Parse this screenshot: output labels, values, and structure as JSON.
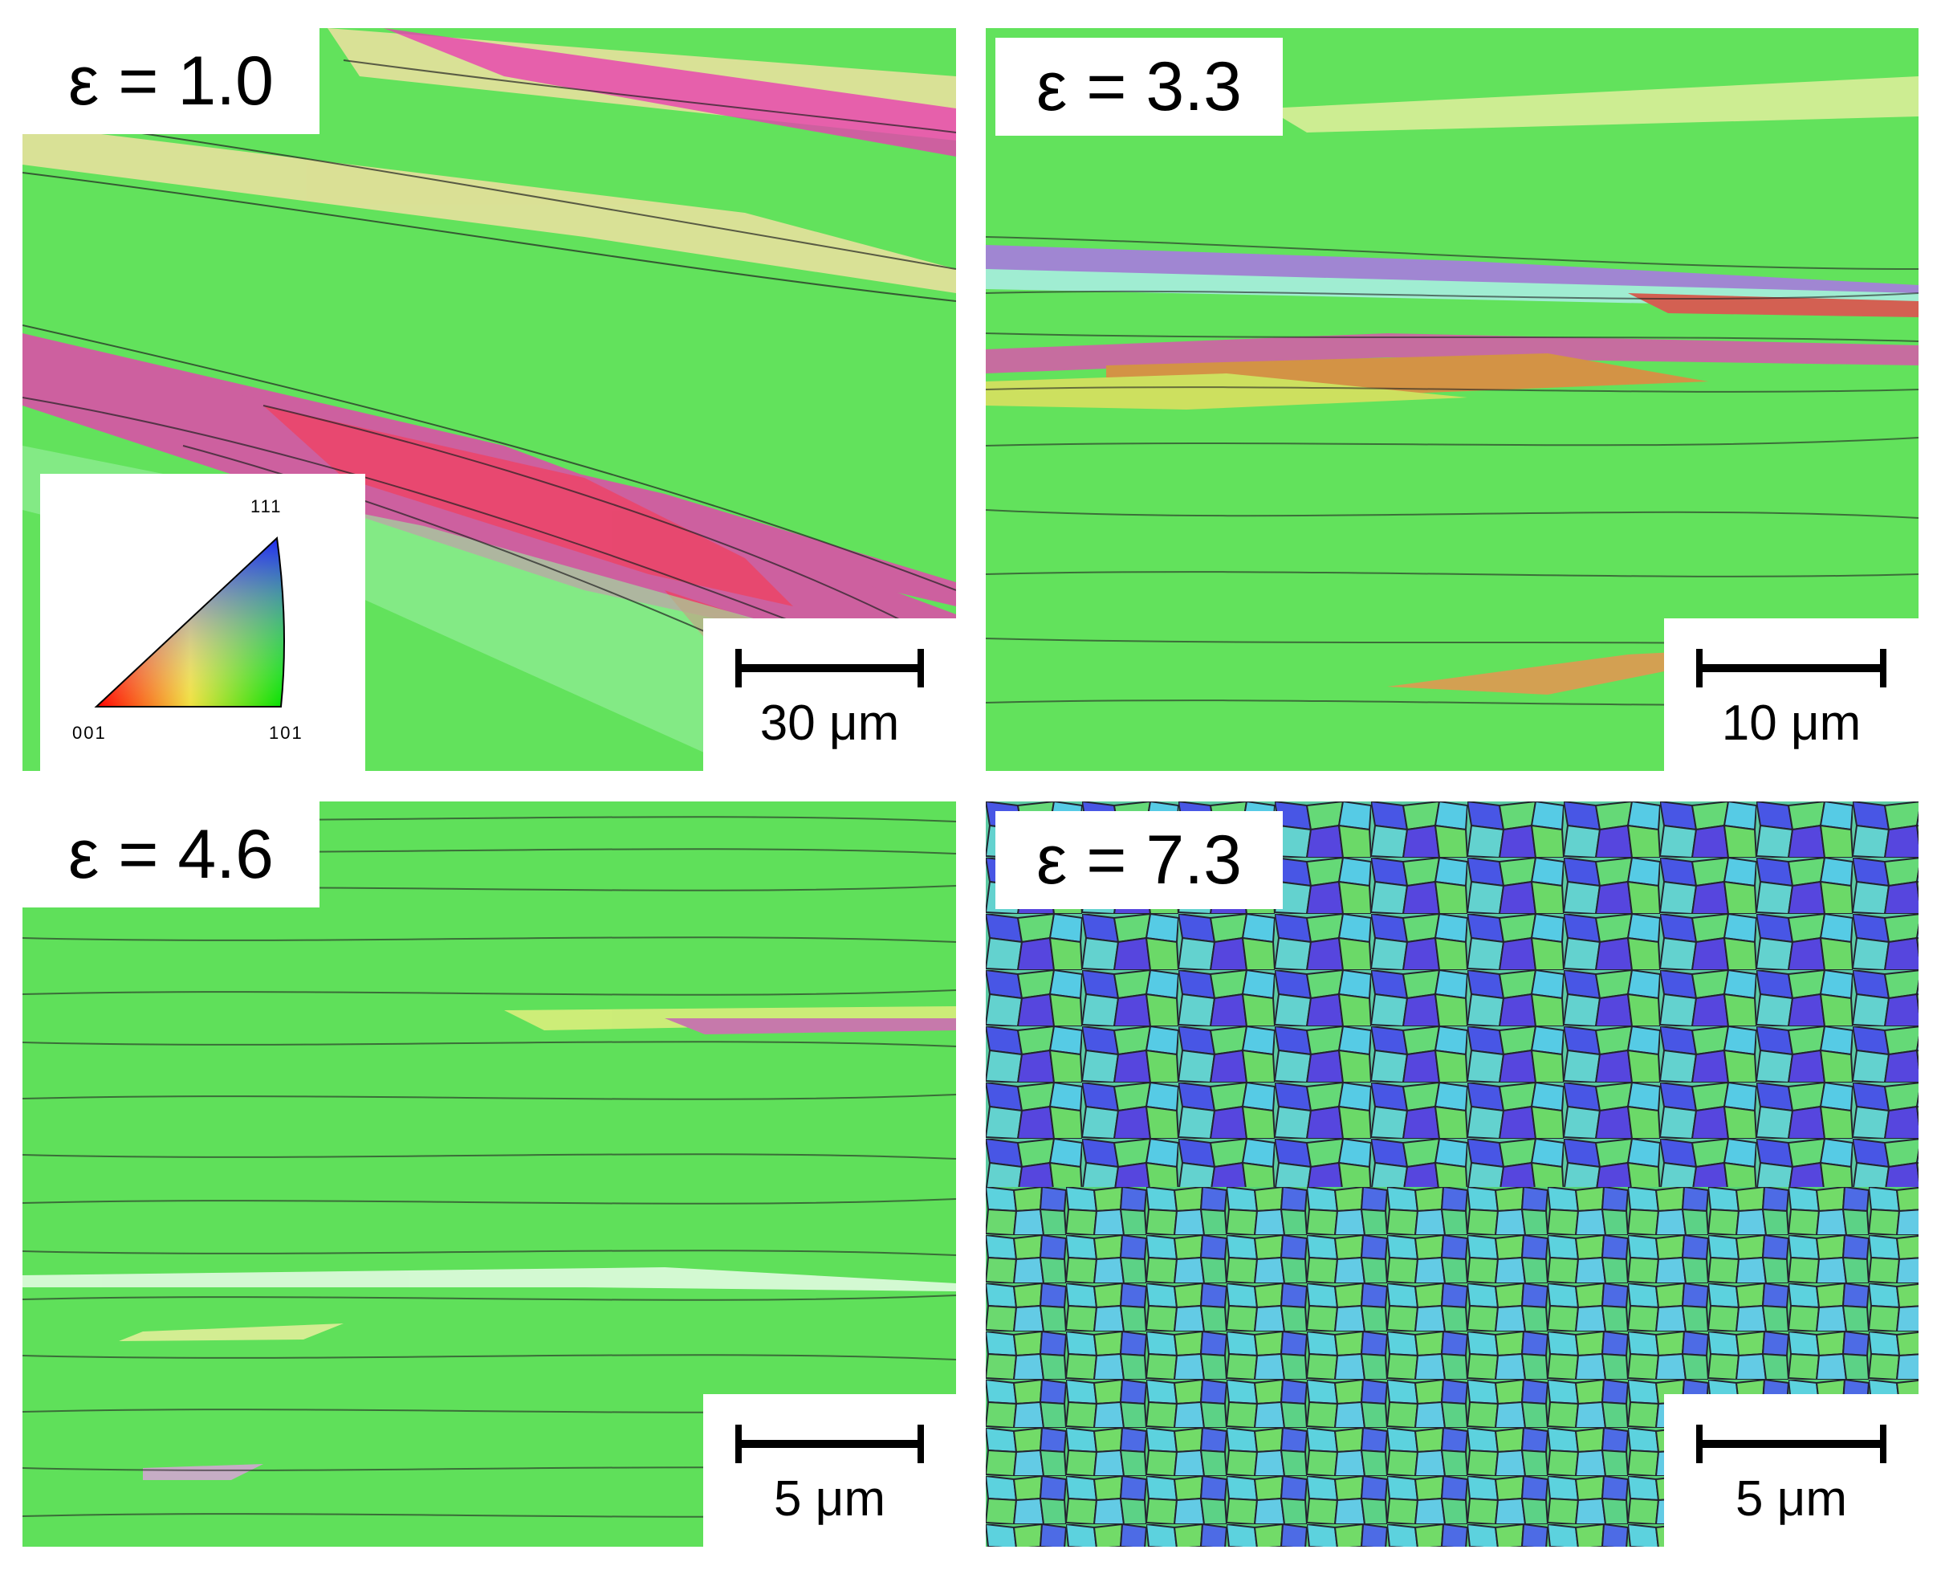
{
  "panels": [
    {
      "label": "ε = 1.0",
      "scale": "30 μm"
    },
    {
      "label": "ε = 3.3",
      "scale": "10 μm"
    },
    {
      "label": "ε = 4.6",
      "scale": "5 μm"
    },
    {
      "label": "ε = 7.3",
      "scale": "5 μm"
    }
  ],
  "legend": {
    "corner_top": "111",
    "corner_left": "001",
    "corner_right": "101"
  },
  "colors": {
    "green": "#5fe05a",
    "red": "#e8304a",
    "magenta": "#e040c8",
    "blue": "#4050e8",
    "cyan": "#60e0e0",
    "yellow": "#e8e870"
  }
}
